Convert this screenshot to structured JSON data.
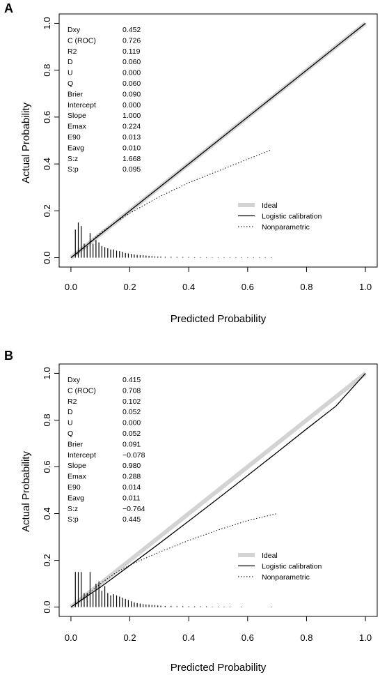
{
  "chart_data": [
    {
      "panel": "A",
      "type": "line",
      "xlabel": "Predicted Probability",
      "ylabel": "Actual Probability",
      "xlim": [
        0,
        1
      ],
      "ylim": [
        0,
        1
      ],
      "x_ticks": [
        "0.0",
        "0.2",
        "0.4",
        "0.6",
        "0.8",
        "1.0"
      ],
      "y_ticks": [
        "0.0",
        "0.2",
        "0.4",
        "0.6",
        "0.8",
        "1.0"
      ],
      "stats": [
        [
          "Dxy",
          "0.452"
        ],
        [
          "C (ROC)",
          "0.726"
        ],
        [
          "R2",
          "0.119"
        ],
        [
          "D",
          "0.060"
        ],
        [
          "U",
          "0.000"
        ],
        [
          "Q",
          "0.060"
        ],
        [
          "Brier",
          "0.090"
        ],
        [
          "Intercept",
          "0.000"
        ],
        [
          "Slope",
          "1.000"
        ],
        [
          "Emax",
          "0.224"
        ],
        [
          "E90",
          "0.013"
        ],
        [
          "Eavg",
          "0.010"
        ],
        [
          "S:z",
          "1.668"
        ],
        [
          "S:p",
          "0.095"
        ]
      ],
      "legend": [
        "Ideal",
        "Logistic calibration",
        "Nonparametric"
      ],
      "series": [
        {
          "name": "Ideal",
          "x": [
            0,
            1
          ],
          "y": [
            0,
            1
          ],
          "color": "#d3d3d3"
        },
        {
          "name": "Logistic calibration",
          "x": [
            0,
            0.25,
            0.5,
            0.75,
            1.0
          ],
          "y": [
            0,
            0.25,
            0.5,
            0.75,
            1.0
          ],
          "color": "#000000"
        },
        {
          "name": "Nonparametric",
          "x": [
            0.02,
            0.05,
            0.1,
            0.15,
            0.2,
            0.3,
            0.4,
            0.5,
            0.6,
            0.68
          ],
          "y": [
            0.015,
            0.05,
            0.105,
            0.15,
            0.19,
            0.26,
            0.32,
            0.37,
            0.42,
            0.46
          ],
          "color": "#000000"
        }
      ],
      "histogram": {
        "x": [
          0.015,
          0.025,
          0.035,
          0.045,
          0.055,
          0.065,
          0.075,
          0.085,
          0.095,
          0.105,
          0.115,
          0.125,
          0.135,
          0.145,
          0.155,
          0.165,
          0.175,
          0.185,
          0.195,
          0.205,
          0.215,
          0.225,
          0.235,
          0.245,
          0.255,
          0.265,
          0.275,
          0.285,
          0.295,
          0.305,
          0.32,
          0.34,
          0.36,
          0.38,
          0.4,
          0.42,
          0.44,
          0.46,
          0.48,
          0.5,
          0.52,
          0.54,
          0.56,
          0.58,
          0.6,
          0.62,
          0.64,
          0.66,
          0.68
        ],
        "y": [
          0.12,
          0.15,
          0.135,
          0.06,
          0.05,
          0.105,
          0.06,
          0.075,
          0.065,
          0.05,
          0.045,
          0.04,
          0.035,
          0.035,
          0.03,
          0.028,
          0.025,
          0.02,
          0.018,
          0.016,
          0.014,
          0.012,
          0.011,
          0.01,
          0.009,
          0.008,
          0.007,
          0.006,
          0.005,
          0.005,
          0.004,
          0.004,
          0.003,
          0.003,
          0.003,
          0.002,
          0.002,
          0.002,
          0.002,
          0.002,
          0.002,
          0.002,
          0.002,
          0.002,
          0.002,
          0.002,
          0.002,
          0.002,
          0.002
        ]
      }
    },
    {
      "panel": "B",
      "type": "line",
      "xlabel": "Predicted Probability",
      "ylabel": "Actual Probability",
      "xlim": [
        0,
        1
      ],
      "ylim": [
        0,
        1
      ],
      "x_ticks": [
        "0.0",
        "0.2",
        "0.4",
        "0.6",
        "0.8",
        "1.0"
      ],
      "y_ticks": [
        "0.0",
        "0.2",
        "0.4",
        "0.6",
        "0.8",
        "1.0"
      ],
      "stats": [
        [
          "Dxy",
          "0.415"
        ],
        [
          "C (ROC)",
          "0.708"
        ],
        [
          "R2",
          "0.102"
        ],
        [
          "D",
          "0.052"
        ],
        [
          "U",
          "0.000"
        ],
        [
          "Q",
          "0.052"
        ],
        [
          "Brier",
          "0.091"
        ],
        [
          "Intercept",
          "−0.078"
        ],
        [
          "Slope",
          "0.980"
        ],
        [
          "Emax",
          "0.288"
        ],
        [
          "E90",
          "0.014"
        ],
        [
          "Eavg",
          "0.011"
        ],
        [
          "S:z",
          "−0.764"
        ],
        [
          "S:p",
          "0.445"
        ]
      ],
      "legend": [
        "Ideal",
        "Logistic calibration",
        "Nonparametric"
      ],
      "series": [
        {
          "name": "Ideal",
          "x": [
            0,
            1
          ],
          "y": [
            0,
            1
          ],
          "color": "#d3d3d3"
        },
        {
          "name": "Logistic calibration",
          "x": [
            0,
            0.1,
            0.2,
            0.3,
            0.4,
            0.5,
            0.6,
            0.7,
            0.8,
            0.9,
            1.0
          ],
          "y": [
            0,
            0.085,
            0.178,
            0.272,
            0.368,
            0.465,
            0.563,
            0.662,
            0.762,
            0.86,
            1.0
          ],
          "color": "#000000"
        },
        {
          "name": "Nonparametric",
          "x": [
            0.02,
            0.05,
            0.1,
            0.15,
            0.2,
            0.3,
            0.4,
            0.5,
            0.6,
            0.7
          ],
          "y": [
            0.015,
            0.048,
            0.1,
            0.145,
            0.18,
            0.235,
            0.285,
            0.33,
            0.37,
            0.4
          ],
          "color": "#000000"
        }
      ],
      "histogram": {
        "x": [
          0.015,
          0.025,
          0.035,
          0.045,
          0.055,
          0.065,
          0.075,
          0.085,
          0.095,
          0.105,
          0.115,
          0.125,
          0.135,
          0.145,
          0.155,
          0.165,
          0.175,
          0.185,
          0.195,
          0.205,
          0.215,
          0.225,
          0.235,
          0.245,
          0.255,
          0.265,
          0.275,
          0.285,
          0.295,
          0.305,
          0.32,
          0.34,
          0.36,
          0.38,
          0.4,
          0.42,
          0.44,
          0.46,
          0.48,
          0.5,
          0.52,
          0.54,
          0.58,
          0.68
        ],
        "y": [
          0.15,
          0.15,
          0.15,
          0.06,
          0.06,
          0.15,
          0.06,
          0.1,
          0.11,
          0.07,
          0.09,
          0.06,
          0.05,
          0.055,
          0.05,
          0.045,
          0.04,
          0.035,
          0.03,
          0.025,
          0.02,
          0.017,
          0.015,
          0.013,
          0.011,
          0.01,
          0.009,
          0.008,
          0.007,
          0.006,
          0.005,
          0.005,
          0.004,
          0.004,
          0.003,
          0.003,
          0.003,
          0.003,
          0.002,
          0.002,
          0.002,
          0.002,
          0.002,
          0.002
        ]
      }
    }
  ]
}
